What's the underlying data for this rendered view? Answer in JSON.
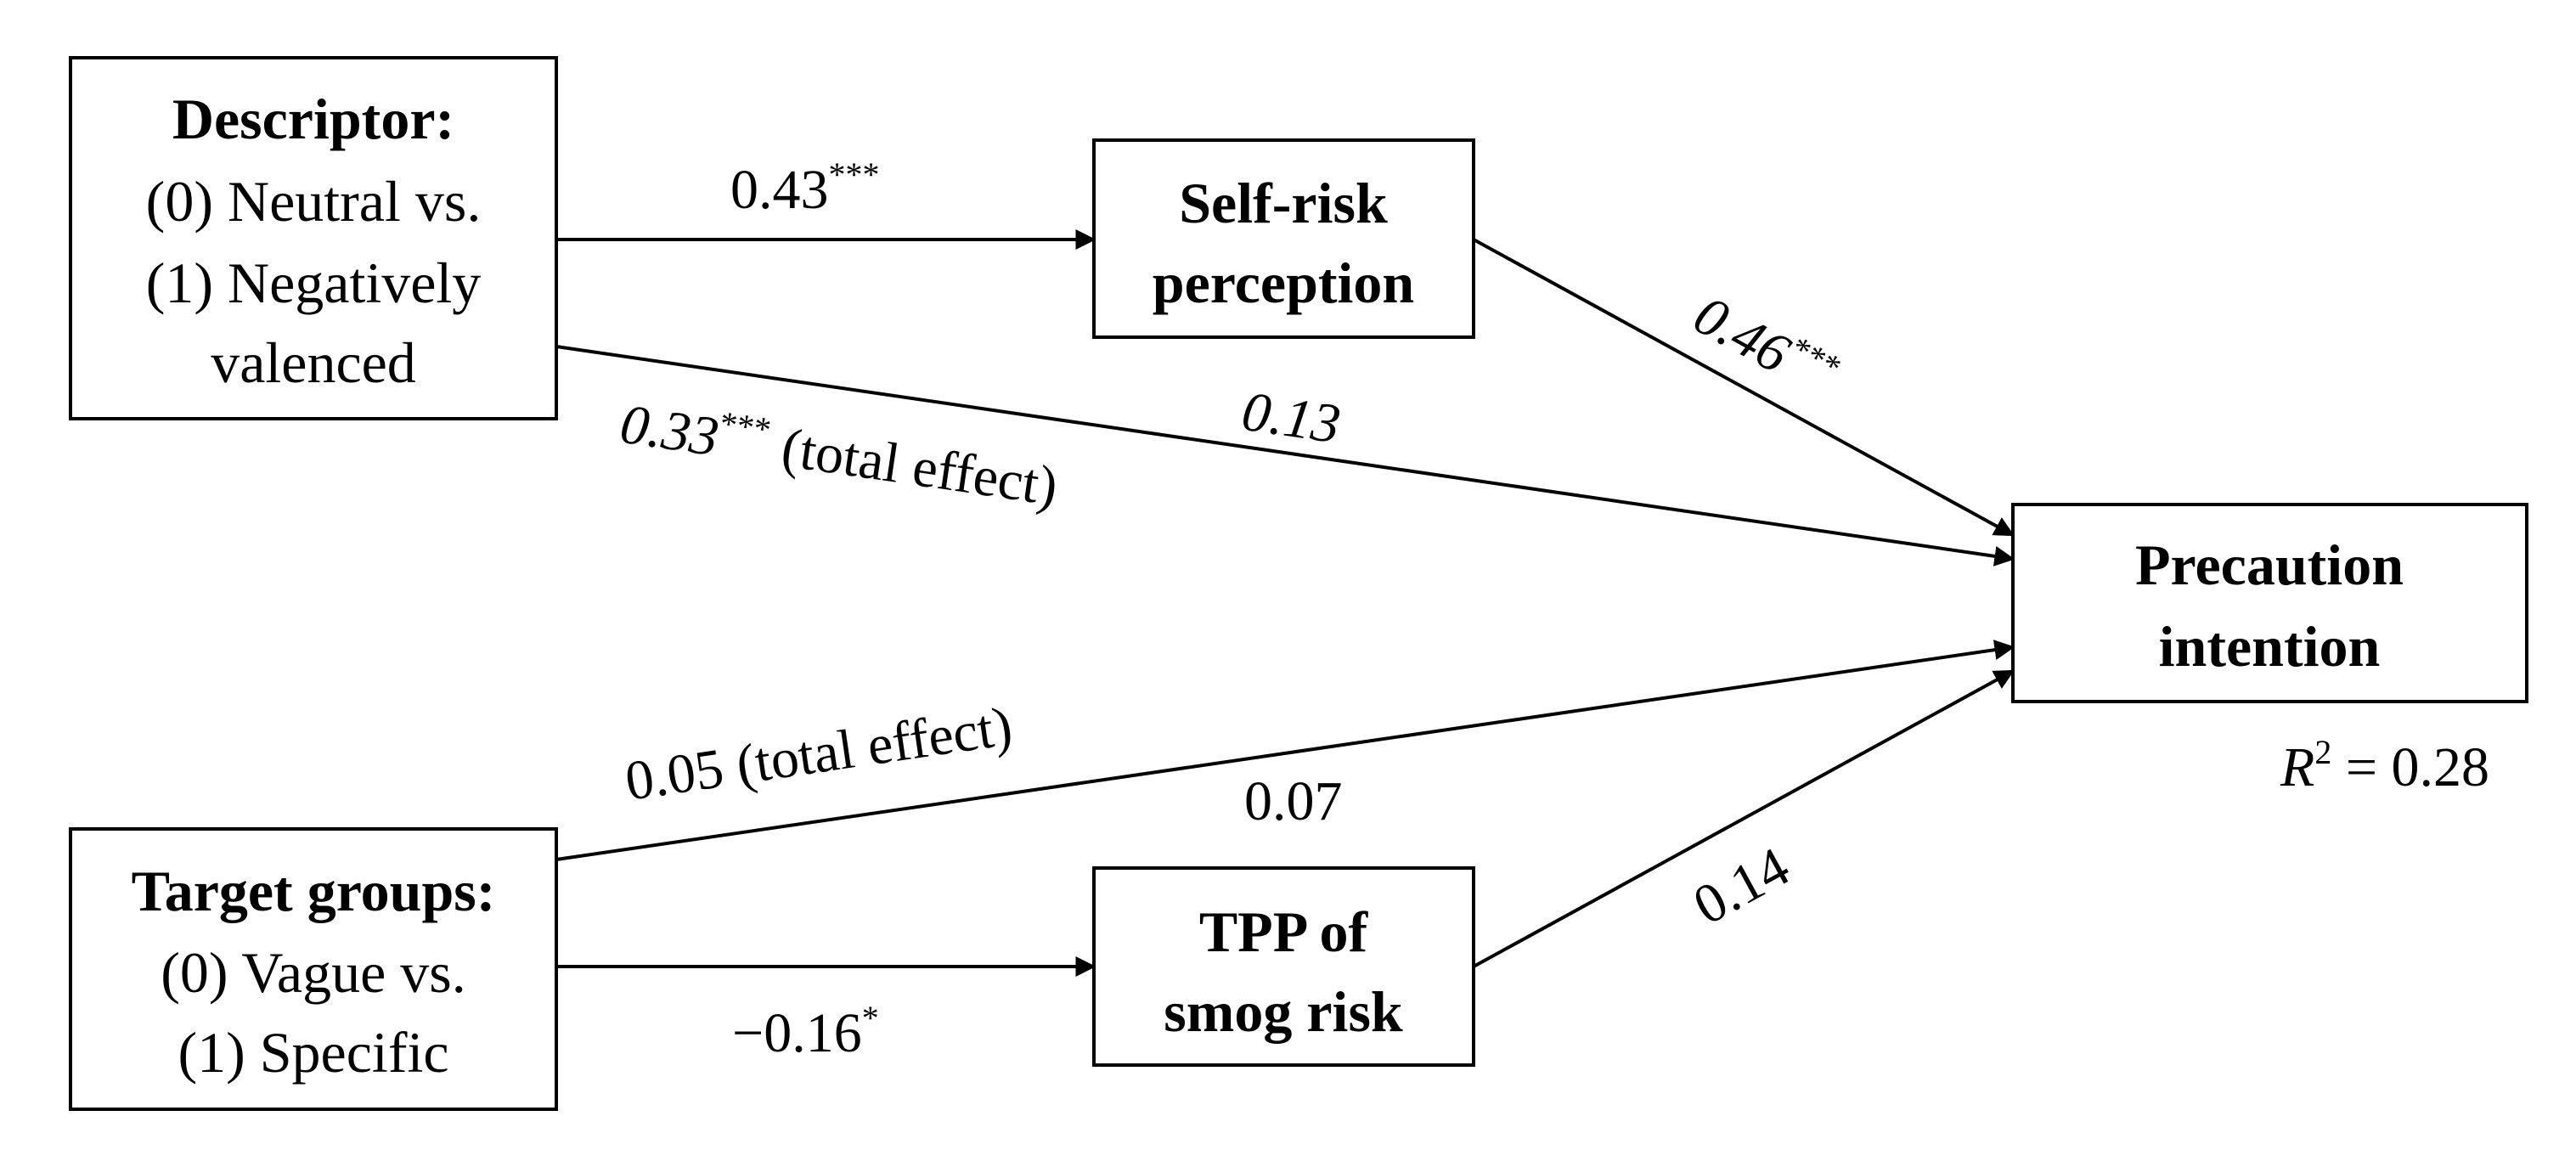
{
  "nodes": {
    "descriptor": {
      "title": "Descriptor:",
      "line1": "(0) Neutral vs.",
      "line2": "(1) Negatively",
      "line3": "valenced"
    },
    "self_risk": {
      "line1": "Self-risk",
      "line2": "perception"
    },
    "precaution": {
      "line1": "Precaution",
      "line2": "intention",
      "r2_symbol": "R",
      "r2_exp": "2",
      "r2_value": " = 0.28"
    },
    "target_groups": {
      "title": "Target groups:",
      "line1": "(0) Vague vs.",
      "line2": "(1) Specific"
    },
    "tpp": {
      "line1": "TPP of",
      "line2": "smog risk"
    }
  },
  "edges": {
    "descriptor_to_self_risk": {
      "value": "0.43",
      "sig": "***"
    },
    "self_risk_to_precaution": {
      "value": "0.46",
      "sig": "***"
    },
    "descriptor_to_precaution": {
      "direct": "0.13",
      "total_value": "0.33",
      "total_sig": "***",
      "total_suffix": " (total effect)"
    },
    "target_to_precaution": {
      "total": "0.05 (total effect)",
      "direct": "0.07"
    },
    "target_to_tpp": {
      "value": "−0.16",
      "sig": "*"
    },
    "tpp_to_precaution": {
      "value": "0.14"
    }
  }
}
